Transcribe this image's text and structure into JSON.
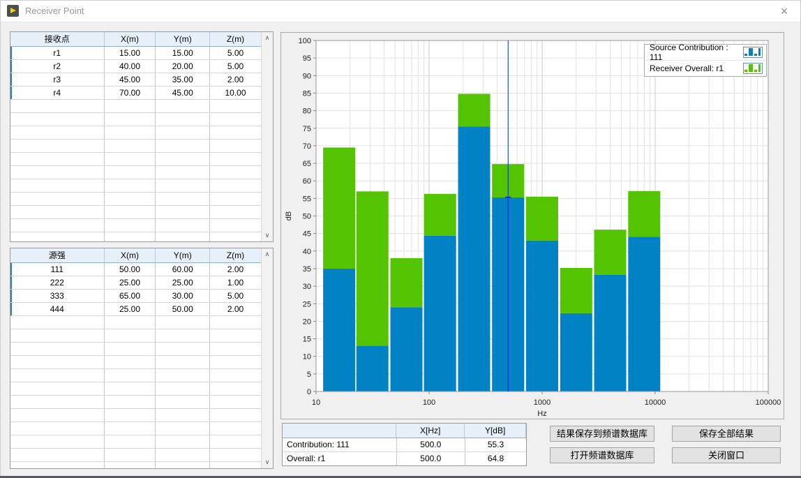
{
  "window": {
    "title": "Receiver Point",
    "close_glyph": "×"
  },
  "receiver_table": {
    "headers": [
      "接收点",
      "X(m)",
      "Y(m)",
      "Z(m)"
    ],
    "rows": [
      [
        "r1",
        "15.00",
        "15.00",
        "5.00"
      ],
      [
        "r2",
        "40.00",
        "20.00",
        "5.00"
      ],
      [
        "r3",
        "45.00",
        "35.00",
        "2.00"
      ],
      [
        "r4",
        "70.00",
        "45.00",
        "10.00"
      ]
    ]
  },
  "source_table": {
    "headers": [
      "源强",
      "X(m)",
      "Y(m)",
      "Z(m)"
    ],
    "rows": [
      [
        "111",
        "50.00",
        "60.00",
        "2.00"
      ],
      [
        "222",
        "25.00",
        "25.00",
        "1.00"
      ],
      [
        "333",
        "65.00",
        "30.00",
        "5.00"
      ],
      [
        "444",
        "25.00",
        "50.00",
        "2.00"
      ]
    ]
  },
  "chart_data": {
    "type": "bar",
    "stacked": true,
    "xscale": "log",
    "xlabel": "Hz",
    "ylabel": "dB",
    "xlim": [
      10,
      100000
    ],
    "ylim": [
      0,
      100
    ],
    "ytick_step": 5,
    "xticks": [
      "10",
      "100",
      "1000",
      "10000",
      "100000"
    ],
    "categories_hz": [
      16,
      31.5,
      63,
      125,
      250,
      500,
      1000,
      2000,
      4000,
      8000
    ],
    "series": [
      {
        "name": "Source Contribution : 111",
        "color": "#0082C4",
        "values": [
          35.0,
          13.0,
          24.0,
          44.4,
          75.5,
          55.3,
          43.0,
          22.3,
          33.2,
          44.1
        ]
      },
      {
        "name": "Receiver Overall: r1",
        "color": "#55C400",
        "values": [
          69.5,
          57.0,
          38.0,
          56.3,
          84.8,
          64.8,
          55.5,
          35.2,
          46.1,
          57.1
        ],
        "note": "overall totals; green segment drawn from contribution value up to overall value"
      }
    ],
    "cursor": {
      "x_hz": 500,
      "y_db": 55.3,
      "color": "#0033CC"
    },
    "legend_position": "top-right",
    "grid": true,
    "colors": {
      "grid_minor": "#E2E2E2",
      "grid_major": "#C9C9C9",
      "plot_border": "#9A9A9A",
      "plot_bg": "#FFFFFF"
    }
  },
  "readout_table": {
    "headers": [
      "",
      "X[Hz]",
      "Y[dB]"
    ],
    "rows": [
      [
        "Contribution: 111",
        "500.0",
        "55.3"
      ],
      [
        "Overall: r1",
        "500.0",
        "64.8"
      ]
    ]
  },
  "buttons": {
    "save_to_db": "结果保存到频谱数据库",
    "save_all": "保存全部结果",
    "open_db": "打开频谱数据库",
    "close_window": "关闭窗口"
  },
  "scrollbar": {
    "up_glyph": "∧",
    "down_glyph": "∨"
  }
}
